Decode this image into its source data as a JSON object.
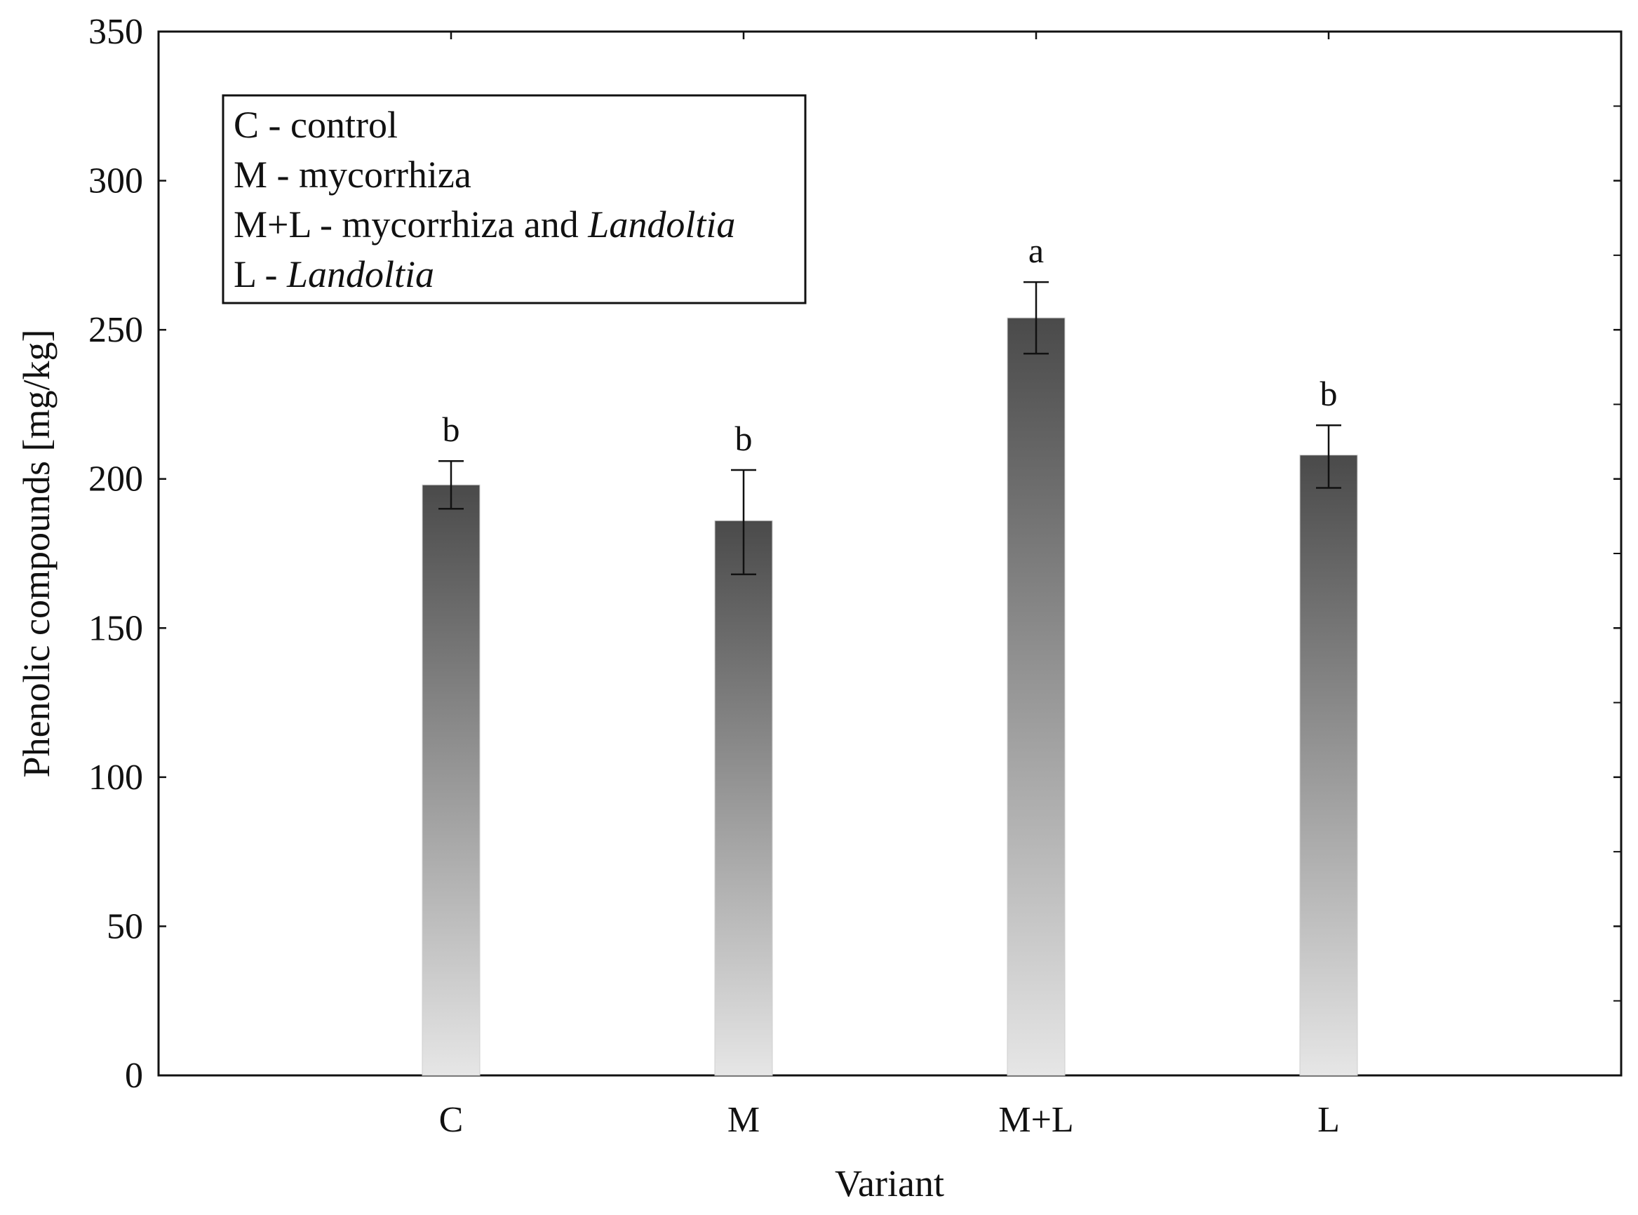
{
  "chart_data": {
    "type": "bar",
    "title": "",
    "xlabel": "Variant",
    "ylabel": "Phenolic compounds [mg/kg]",
    "ylim": [
      0,
      350
    ],
    "y_ticks": [
      0,
      50,
      100,
      150,
      200,
      250,
      300,
      350
    ],
    "grid": false,
    "categories": [
      "C",
      "M",
      "M+L",
      "L"
    ],
    "values": [
      198,
      186,
      254,
      208
    ],
    "error_low": [
      190,
      168,
      242,
      197
    ],
    "error_high": [
      206,
      203,
      266,
      218
    ],
    "significance_letters": [
      "b",
      "b",
      "a",
      "b"
    ],
    "bar_gradient": {
      "top": "#4a4a4a",
      "bottom": "#e6e6e6"
    },
    "legend": {
      "placement": "top-left",
      "entries": [
        {
          "prefix": "C - control",
          "italic": ""
        },
        {
          "prefix": "M - mycorrhiza",
          "italic": ""
        },
        {
          "prefix": "M+L - mycorrhiza and ",
          "italic": "Landoltia"
        },
        {
          "prefix": "L - ",
          "italic": "Landoltia"
        }
      ]
    }
  }
}
